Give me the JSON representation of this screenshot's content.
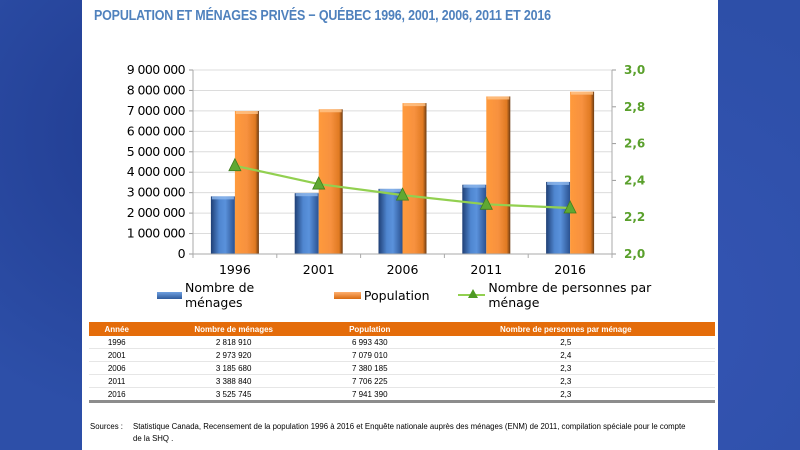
{
  "title": "POPULATION ET MÉNAGES PRIVÉS − QUÉBEC 1996, 2001, 2006, 2011 ET 2016",
  "chart_data": {
    "type": "bar",
    "title": "POPULATION ET MÉNAGES PRIVÉS − QUÉBEC 1996, 2001, 2006, 2011 ET 2016",
    "categories": [
      "1996",
      "2001",
      "2006",
      "2011",
      "2016"
    ],
    "series": [
      {
        "name": "Nombre de ménages",
        "type": "bar",
        "axis": "left",
        "color": "#4f81bd",
        "values": [
          2818910,
          2973920,
          3185680,
          3388840,
          3525745
        ]
      },
      {
        "name": "Population",
        "type": "bar",
        "axis": "left",
        "color": "#f79646",
        "values": [
          6993430,
          7079010,
          7380185,
          7706225,
          7941390
        ]
      },
      {
        "name": "Nombre de personnes par ménage",
        "type": "line",
        "axis": "right",
        "color": "#92d050",
        "marker": "triangle",
        "values": [
          2.48,
          2.38,
          2.32,
          2.27,
          2.25
        ]
      }
    ],
    "ylim": [
      0,
      9000000
    ],
    "yticks": [
      "0",
      "1 000 000",
      "2 000 000",
      "3 000 000",
      "4 000 000",
      "5 000 000",
      "6 000 000",
      "7 000 000",
      "8 000 000",
      "9 000 000"
    ],
    "y2lim": [
      2.0,
      3.0
    ],
    "y2ticks": [
      "2,0",
      "2,2",
      "2,4",
      "2,6",
      "2,8",
      "3,0"
    ],
    "y2color": "#5aa02c",
    "xlabel": "",
    "ylabel": "",
    "grid": true,
    "legend": "bottom"
  },
  "table": {
    "headers": [
      "Année",
      "Nombre de ménages",
      "Population",
      "Nombre de personnes par ménage"
    ],
    "rows": [
      [
        "1996",
        "2 818 910",
        "6 993 430",
        "2,5"
      ],
      [
        "2001",
        "2 973 920",
        "7 079 010",
        "2,4"
      ],
      [
        "2006",
        "3 185 680",
        "7 380 185",
        "2,3"
      ],
      [
        "2011",
        "3 388 840",
        "7 706 225",
        "2,3"
      ],
      [
        "2016",
        "3 525 745",
        "7 941 390",
        "2,3"
      ]
    ]
  },
  "sources": {
    "label": "Sources :",
    "text": "Statistique Canada, Recensement de la population 1996 à 2016 et Enquête nationale auprès des ménages (ENM) de 2011, compilation spéciale pour le compte de la SHQ ."
  }
}
